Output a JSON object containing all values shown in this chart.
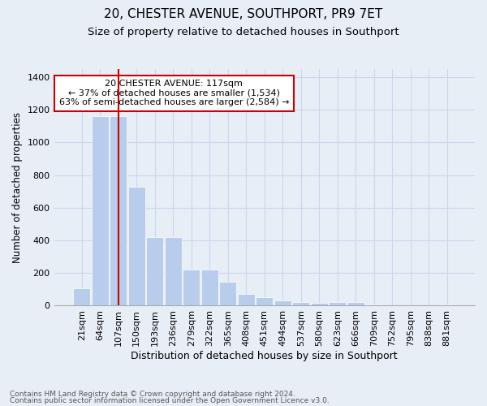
{
  "title": "20, CHESTER AVENUE, SOUTHPORT, PR9 7ET",
  "subtitle": "Size of property relative to detached houses in Southport",
  "xlabel": "Distribution of detached houses by size in Southport",
  "ylabel": "Number of detached properties",
  "categories": [
    "21sqm",
    "64sqm",
    "107sqm",
    "150sqm",
    "193sqm",
    "236sqm",
    "279sqm",
    "322sqm",
    "365sqm",
    "408sqm",
    "451sqm",
    "494sqm",
    "537sqm",
    "580sqm",
    "623sqm",
    "666sqm",
    "709sqm",
    "752sqm",
    "795sqm",
    "838sqm",
    "881sqm"
  ],
  "values": [
    108,
    1162,
    1162,
    730,
    420,
    420,
    220,
    220,
    148,
    72,
    50,
    30,
    20,
    15,
    20,
    20,
    8,
    0,
    0,
    0,
    5
  ],
  "bar_color": "#b8cceb",
  "bar_edge_color": "#b8cceb",
  "grid_color": "#c8d8ec",
  "background_color": "#e8eef6",
  "red_line_x": 2.5,
  "annotation_text_line1": "20 CHESTER AVENUE: 117sqm",
  "annotation_text_line2": "← 37% of detached houses are smaller (1,534)",
  "annotation_text_line3": "63% of semi-detached houses are larger (2,584) →",
  "annotation_box_color": "#ffffff",
  "annotation_border_color": "#cc0000",
  "ylim": [
    0,
    1450
  ],
  "yticks": [
    0,
    200,
    400,
    600,
    800,
    1000,
    1200,
    1400
  ],
  "footer1": "Contains HM Land Registry data © Crown copyright and database right 2024.",
  "footer2": "Contains public sector information licensed under the Open Government Licence v3.0.",
  "title_fontsize": 11,
  "subtitle_fontsize": 9.5,
  "tick_fontsize": 8,
  "ylabel_fontsize": 8.5,
  "xlabel_fontsize": 9
}
